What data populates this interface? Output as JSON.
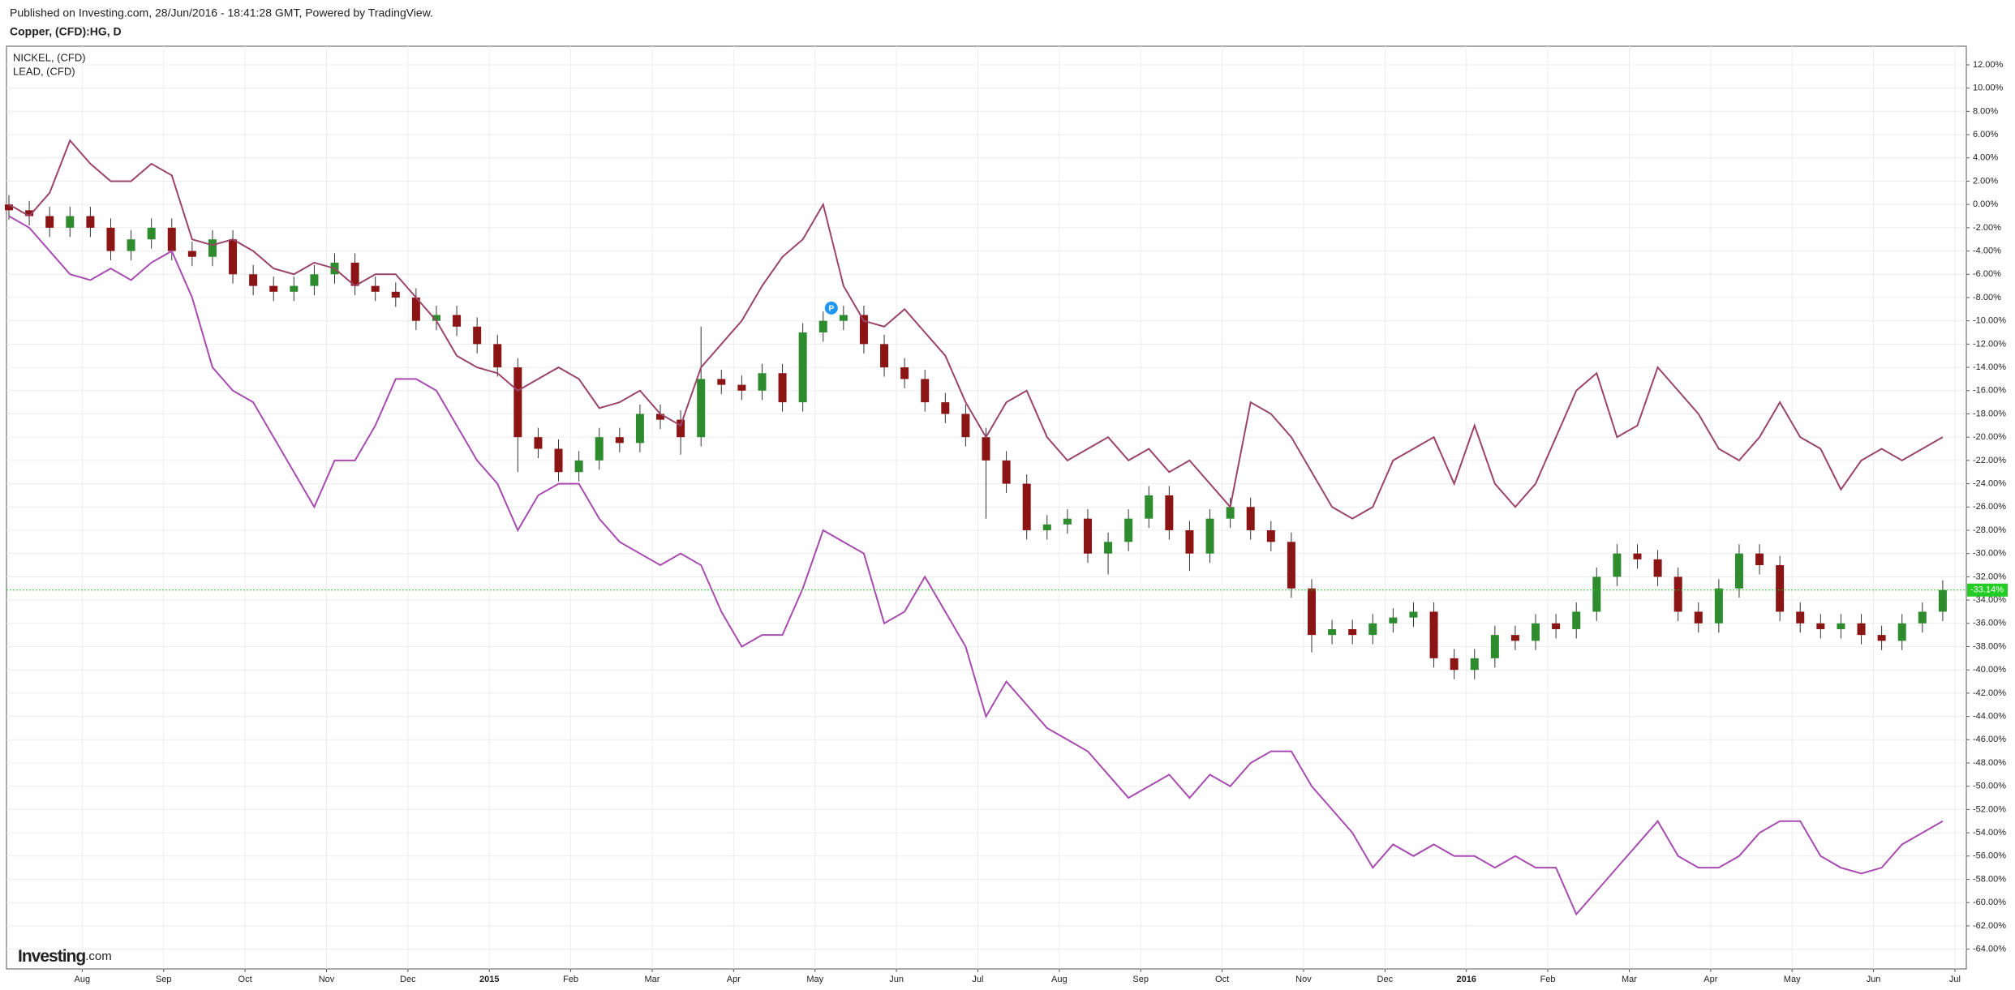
{
  "chart_data": {
    "type": "candlestick",
    "source": "Published on Investing.com, 28/Jun/2016 - 18:41:28 GMT, Powered by TradingView.",
    "title": "Copper, (CFD):HG, D",
    "watermark": [
      "Investing",
      ".com"
    ],
    "grid": true,
    "xlim": [
      -0.93,
      23.14
    ],
    "ylim": [
      -65.7,
      13.6
    ],
    "xticks": [
      {
        "value": 0,
        "label": "Aug"
      },
      {
        "value": 1,
        "label": "Sep"
      },
      {
        "value": 2,
        "label": "Oct"
      },
      {
        "value": 3,
        "label": "Nov"
      },
      {
        "value": 4,
        "label": "Dec"
      },
      {
        "value": 5,
        "label": "2015"
      },
      {
        "value": 6,
        "label": "Feb"
      },
      {
        "value": 7,
        "label": "Mar"
      },
      {
        "value": 8,
        "label": "Apr"
      },
      {
        "value": 9,
        "label": "May"
      },
      {
        "value": 10,
        "label": "Jun"
      },
      {
        "value": 11,
        "label": "Jul"
      },
      {
        "value": 12,
        "label": "Aug"
      },
      {
        "value": 13,
        "label": "Sep"
      },
      {
        "value": 14,
        "label": "Oct"
      },
      {
        "value": 15,
        "label": "Nov"
      },
      {
        "value": 16,
        "label": "Dec"
      },
      {
        "value": 17,
        "label": "2016"
      },
      {
        "value": 18,
        "label": "Feb"
      },
      {
        "value": 19,
        "label": "Mar"
      },
      {
        "value": 20,
        "label": "Apr"
      },
      {
        "value": 21,
        "label": "May"
      },
      {
        "value": 22,
        "label": "Jun"
      },
      {
        "value": 23,
        "label": "Jul"
      }
    ],
    "yticks": [
      {
        "value": 12,
        "label": "12.00%"
      },
      {
        "value": 10,
        "label": "10.00%"
      },
      {
        "value": 8,
        "label": "8.00%"
      },
      {
        "value": 6,
        "label": "6.00%"
      },
      {
        "value": 4,
        "label": "4.00%"
      },
      {
        "value": 2,
        "label": "2.00%"
      },
      {
        "value": 0,
        "label": "0.00%"
      },
      {
        "value": -2,
        "label": "-2.00%"
      },
      {
        "value": -4,
        "label": "-4.00%"
      },
      {
        "value": -6,
        "label": "-6.00%"
      },
      {
        "value": -8,
        "label": "-8.00%"
      },
      {
        "value": -10,
        "label": "-10.00%"
      },
      {
        "value": -12,
        "label": "-12.00%"
      },
      {
        "value": -14,
        "label": "-14.00%"
      },
      {
        "value": -16,
        "label": "-16.00%"
      },
      {
        "value": -18,
        "label": "-18.00%"
      },
      {
        "value": -20,
        "label": "-20.00%"
      },
      {
        "value": -22,
        "label": "-22.00%"
      },
      {
        "value": -24,
        "label": "-24.00%"
      },
      {
        "value": -26,
        "label": "-26.00%"
      },
      {
        "value": -28,
        "label": "-28.00%"
      },
      {
        "value": -30,
        "label": "-30.00%"
      },
      {
        "value": -32,
        "label": "-32.00%"
      },
      {
        "value": -34,
        "label": "-34.00%"
      },
      {
        "value": -36,
        "label": "-36.00%"
      },
      {
        "value": -38,
        "label": "-38.00%"
      },
      {
        "value": -40,
        "label": "-40.00%"
      },
      {
        "value": -42,
        "label": "-42.00%"
      },
      {
        "value": -44,
        "label": "-44.00%"
      },
      {
        "value": -46,
        "label": "-46.00%"
      },
      {
        "value": -48,
        "label": "-48.00%"
      },
      {
        "value": -50,
        "label": "-50.00%"
      },
      {
        "value": -52,
        "label": "-52.00%"
      },
      {
        "value": -54,
        "label": "-54.00%"
      },
      {
        "value": -56,
        "label": "-56.00%"
      },
      {
        "value": -58,
        "label": "-58.00%"
      },
      {
        "value": -60,
        "label": "-60.00%"
      },
      {
        "value": -62,
        "label": "-62.00%"
      },
      {
        "value": -64,
        "label": "-64.00%"
      }
    ],
    "x": [
      -0.9,
      -0.65,
      -0.4,
      -0.15,
      0.1,
      0.35,
      0.6,
      0.85,
      1.1,
      1.35,
      1.6,
      1.85,
      2.1,
      2.35,
      2.6,
      2.85,
      3.1,
      3.35,
      3.6,
      3.85,
      4.1,
      4.35,
      4.6,
      4.85,
      5.1,
      5.35,
      5.6,
      5.85,
      6.1,
      6.35,
      6.6,
      6.85,
      7.1,
      7.35,
      7.6,
      7.85,
      8.1,
      8.35,
      8.6,
      8.85,
      9.1,
      9.35,
      9.6,
      9.85,
      10.1,
      10.35,
      10.6,
      10.85,
      11.1,
      11.35,
      11.6,
      11.85,
      12.1,
      12.35,
      12.6,
      12.85,
      13.1,
      13.35,
      13.6,
      13.85,
      14.1,
      14.35,
      14.6,
      14.85,
      15.1,
      15.35,
      15.6,
      15.85,
      16.1,
      16.35,
      16.6,
      16.85,
      17.1,
      17.35,
      17.6,
      17.85,
      18.1,
      18.35,
      18.6,
      18.85,
      19.1,
      19.35,
      19.6,
      19.85,
      20.1,
      20.35,
      20.6,
      20.85,
      21.1,
      21.35,
      21.6,
      21.85,
      22.1,
      22.35,
      22.6,
      22.85
    ],
    "series": [
      {
        "type": "candlestick",
        "up_color": "#2e8b2e",
        "down_color": "#8b1515",
        "open": [
          0,
          -0.5,
          -1,
          -2,
          -1,
          -2,
          -4,
          -3,
          -2,
          -4,
          -4.5,
          -3,
          -6,
          -7,
          -7.5,
          -7,
          -6,
          -5,
          -7,
          -7.5,
          -8,
          -10,
          -9.5,
          -10.5,
          -12,
          -14,
          -20,
          -21,
          -23,
          -22,
          -20,
          -20.5,
          -18,
          -18.5,
          -20,
          -15,
          -15.5,
          -16,
          -14.5,
          -17,
          -11,
          -10,
          -9.5,
          -12,
          -14,
          -15,
          -17,
          -18,
          -20,
          -22,
          -24,
          -28,
          -27.5,
          -27,
          -30,
          -29,
          -27,
          -25,
          -28,
          -30,
          -27,
          -26,
          -28,
          -29,
          -33,
          -37,
          -36.5,
          -37,
          -36,
          -35.5,
          -35,
          -39,
          -40,
          -39,
          -37,
          -37.5,
          -36,
          -36.5,
          -35,
          -32,
          -30,
          -30.5,
          -32,
          -35,
          -36,
          -33,
          -30,
          -31,
          -35,
          -36,
          -36.5,
          -36,
          -37,
          -37.5,
          -36,
          -35
        ],
        "high": [
          0.8,
          0.3,
          -0.2,
          -0.2,
          -0.2,
          -1.2,
          -2.2,
          -1.2,
          -1.2,
          -3.2,
          -2.2,
          -2.2,
          -5.2,
          -6.2,
          -6.2,
          -5.2,
          -4.2,
          -4.2,
          -6.2,
          -6.7,
          -7.2,
          -8.7,
          -8.7,
          -9.7,
          -11.2,
          -13.2,
          -19.2,
          -20.2,
          -21.2,
          -19.2,
          -19.2,
          -17.2,
          -17.2,
          -17.7,
          -10.5,
          -14.2,
          -14.7,
          -13.7,
          -13.7,
          -10.2,
          -9.2,
          -8.7,
          -8.7,
          -11.2,
          -13.2,
          -14.2,
          -16.2,
          -17.2,
          -19.2,
          -21.2,
          -23.2,
          -26.7,
          -26.2,
          -26.2,
          -28.2,
          -26.2,
          -24.2,
          -24.2,
          -27.2,
          -26.2,
          -25.2,
          -25.2,
          -27.2,
          -28.2,
          -32.2,
          -35.7,
          -35.7,
          -35.2,
          -34.7,
          -34.2,
          -34.2,
          -38.2,
          -38.2,
          -36.2,
          -36.2,
          -35.2,
          -35.2,
          -34.2,
          -31.2,
          -29.2,
          -29.2,
          -29.7,
          -31.2,
          -34.2,
          -32.2,
          -29.2,
          -29.2,
          -30.2,
          -34.2,
          -35.2,
          -35.2,
          -35.2,
          -36.2,
          -35.2,
          -34.2,
          -32.3
        ],
        "low": [
          -1.3,
          -1.8,
          -2.8,
          -2.8,
          -2.8,
          -4.8,
          -4.8,
          -3.8,
          -4.8,
          -5.3,
          -5.3,
          -6.8,
          -7.8,
          -8.3,
          -8.3,
          -7.8,
          -6.8,
          -7.8,
          -8.3,
          -8.8,
          -10.8,
          -10.8,
          -11.3,
          -12.8,
          -14.8,
          -23,
          -21.8,
          -23.8,
          -23.8,
          -22.8,
          -21.3,
          -21.3,
          -19.3,
          -21.5,
          -20.8,
          -16.3,
          -16.8,
          -16.8,
          -17.8,
          -17.8,
          -11.8,
          -10.8,
          -12.8,
          -14.8,
          -15.8,
          -17.8,
          -18.8,
          -20.8,
          -27,
          -24.8,
          -28.8,
          -28.8,
          -28.3,
          -30.8,
          -31.8,
          -29.8,
          -27.8,
          -28.8,
          -31.5,
          -30.8,
          -27.8,
          -28.8,
          -29.8,
          -33.8,
          -38.5,
          -37.8,
          -37.8,
          -37.8,
          -36.8,
          -36.3,
          -39.8,
          -40.8,
          -40.8,
          -39.8,
          -38.3,
          -38.3,
          -37.3,
          -37.3,
          -35.8,
          -32.8,
          -31.3,
          -32.8,
          -35.8,
          -36.8,
          -36.8,
          -33.8,
          -31.8,
          -35.8,
          -36.8,
          -37.3,
          -37.3,
          -37.8,
          -38.3,
          -38.3,
          -36.8,
          -35.8
        ],
        "close": [
          -0.5,
          -1,
          -2,
          -1,
          -2,
          -4,
          -3,
          -2,
          -4,
          -4.5,
          -3,
          -6,
          -7,
          -7.5,
          -7,
          -6,
          -5,
          -7,
          -7.5,
          -8,
          -10,
          -9.5,
          -10.5,
          -12,
          -14,
          -20,
          -21,
          -23,
          -22,
          -20,
          -20.5,
          -18,
          -18.5,
          -20,
          -15,
          -15.5,
          -16,
          -14.5,
          -17,
          -11,
          -10,
          -9.5,
          -12,
          -14,
          -15,
          -17,
          -18,
          -20,
          -22,
          -24,
          -28,
          -27.5,
          -27,
          -30,
          -29,
          -27,
          -25,
          -28,
          -30,
          -27,
          -26,
          -28,
          -29,
          -33,
          -37,
          -36.5,
          -37,
          -36,
          -35.5,
          -35,
          -39,
          -40,
          -39,
          -37,
          -37.5,
          -36,
          -36.5,
          -35,
          -32,
          -30,
          -30.5,
          -32,
          -35,
          -36,
          -33,
          -30,
          -31,
          -35,
          -36,
          -36.5,
          -36,
          -37,
          -37.5,
          -36,
          -35,
          -33.14
        ]
      },
      {
        "type": "line",
        "name": "NICKEL,  (CFD)",
        "color": "#a84bb0",
        "values": [
          -1,
          -2,
          -4,
          -6,
          -6.5,
          -5.5,
          -6.5,
          -5,
          -4,
          -8,
          -14,
          -16,
          -17,
          -20,
          -23,
          -26,
          -22,
          -22,
          -19,
          -15,
          -15,
          -16,
          -19,
          -22,
          -24,
          -28,
          -25,
          -24,
          -24,
          -27,
          -29,
          -30,
          -31,
          -30,
          -31,
          -35,
          -38,
          -37,
          -37,
          -33,
          -28,
          -29,
          -30,
          -36,
          -35,
          -32,
          -35,
          -38,
          -44,
          -41,
          -43,
          -45,
          -46,
          -47,
          -49,
          -51,
          -50,
          -49,
          -51,
          -49,
          -50,
          -48,
          -47,
          -47,
          -50,
          -52,
          -54,
          -57,
          -55,
          -56,
          -55,
          -56,
          -56,
          -57,
          -56,
          -57,
          -57,
          -61,
          -59,
          -57,
          -55,
          -53,
          -56,
          -57,
          -57,
          -56,
          -54,
          -53,
          -53,
          -56,
          -57,
          -57.5,
          -57,
          -55,
          -54,
          -53
        ]
      },
      {
        "type": "line",
        "name": "LEAD,  (CFD)",
        "color": "#9b4469",
        "values": [
          0,
          -1,
          1,
          5.5,
          3.5,
          2,
          2,
          3.5,
          2.5,
          -3,
          -3.5,
          -3,
          -4,
          -5.5,
          -6,
          -5,
          -5.5,
          -7,
          -6,
          -6,
          -8,
          -10,
          -13,
          -14,
          -14.5,
          -16,
          -15,
          -14,
          -15,
          -17.5,
          -17,
          -16,
          -18,
          -19,
          -14,
          -12,
          -10,
          -7,
          -4.5,
          -3,
          0,
          -7,
          -10,
          -10.5,
          -9,
          -11,
          -13,
          -17,
          -20,
          -17,
          -16,
          -20,
          -22,
          -21,
          -20,
          -22,
          -21,
          -23,
          -22,
          -24,
          -26,
          -17,
          -18,
          -20,
          -23,
          -26,
          -27,
          -26,
          -22,
          -21,
          -20,
          -24,
          -19,
          -24,
          -26,
          -24,
          -20,
          -16,
          -14.5,
          -20,
          -19,
          -14,
          -16,
          -18,
          -21,
          -22,
          -20,
          -17,
          -20,
          -21,
          -24.5,
          -22,
          -21,
          -22,
          -21,
          -20
        ]
      }
    ],
    "last_price": {
      "value": -33.14,
      "label": "-33.14%",
      "color": "#22cc22"
    },
    "annotations": [
      {
        "text": "P",
        "x": 9.2,
        "y": -8.9,
        "color": "#2196f3"
      }
    ]
  }
}
